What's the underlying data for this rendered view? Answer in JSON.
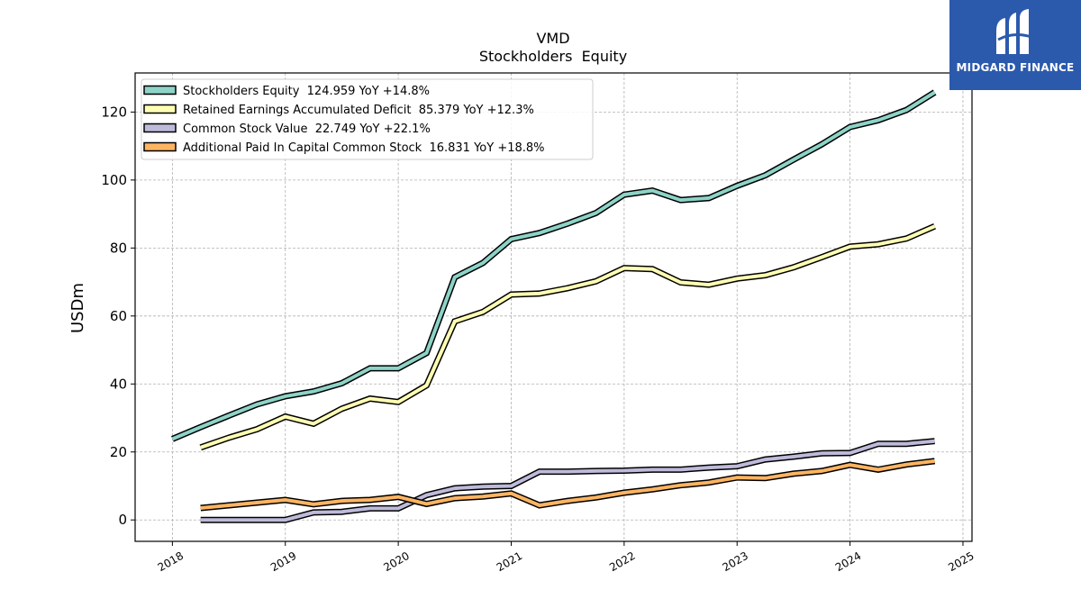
{
  "brand": {
    "name": "MIDGARD FINANCE",
    "bg_color": "#2b5aad"
  },
  "chart_data": {
    "type": "line",
    "title": "VMD",
    "subtitle": "Stockholders  Equity",
    "xlabel": "",
    "ylabel": "USDm",
    "xlim": [
      2017.67,
      2025.08
    ],
    "ylim": [
      -6.3,
      131.5
    ],
    "xticks": [
      2018,
      2019,
      2020,
      2021,
      2022,
      2023,
      2024,
      2025
    ],
    "yticks": [
      0,
      20,
      40,
      60,
      80,
      100,
      120
    ],
    "grid": true,
    "legend_position": "top-left",
    "series": [
      {
        "name": "Stockholders Equity  124.959 YoY +14.8%",
        "color": "#8dd3c7",
        "points": [
          [
            2018.0,
            23.8
          ],
          [
            2018.25,
            27.3
          ],
          [
            2018.5,
            30.7
          ],
          [
            2018.75,
            34.0
          ],
          [
            2019.0,
            36.4
          ],
          [
            2019.25,
            37.8
          ],
          [
            2019.5,
            40.2
          ],
          [
            2019.75,
            44.6
          ],
          [
            2020.0,
            44.6
          ],
          [
            2020.25,
            49.1
          ],
          [
            2020.5,
            71.4
          ],
          [
            2020.75,
            75.6
          ],
          [
            2021.0,
            82.6
          ],
          [
            2021.25,
            84.4
          ],
          [
            2021.5,
            87.2
          ],
          [
            2021.75,
            90.3
          ],
          [
            2022.0,
            95.7
          ],
          [
            2022.25,
            96.9
          ],
          [
            2022.5,
            94.1
          ],
          [
            2022.75,
            94.7
          ],
          [
            2023.0,
            98.3
          ],
          [
            2023.25,
            101.4
          ],
          [
            2023.5,
            106.0
          ],
          [
            2023.75,
            110.5
          ],
          [
            2024.0,
            115.6
          ],
          [
            2024.25,
            117.6
          ],
          [
            2024.5,
            120.6
          ],
          [
            2024.75,
            125.8
          ]
        ]
      },
      {
        "name": "Retained Earnings Accumulated Deficit  85.379 YoY +12.3%",
        "color": "#ffffb3",
        "points": [
          [
            2018.25,
            21.3
          ],
          [
            2018.5,
            24.2
          ],
          [
            2018.75,
            26.7
          ],
          [
            2019.0,
            30.4
          ],
          [
            2019.25,
            28.3
          ],
          [
            2019.5,
            32.7
          ],
          [
            2019.75,
            35.7
          ],
          [
            2020.0,
            34.7
          ],
          [
            2020.25,
            39.6
          ],
          [
            2020.5,
            58.4
          ],
          [
            2020.75,
            61.2
          ],
          [
            2021.0,
            66.3
          ],
          [
            2021.25,
            66.6
          ],
          [
            2021.5,
            68.2
          ],
          [
            2021.75,
            70.2
          ],
          [
            2022.0,
            74.1
          ],
          [
            2022.25,
            73.8
          ],
          [
            2022.5,
            69.9
          ],
          [
            2022.75,
            69.2
          ],
          [
            2023.0,
            71.0
          ],
          [
            2023.25,
            72.0
          ],
          [
            2023.5,
            74.3
          ],
          [
            2023.75,
            77.3
          ],
          [
            2024.0,
            80.4
          ],
          [
            2024.25,
            81.1
          ],
          [
            2024.5,
            82.8
          ],
          [
            2024.75,
            86.4
          ]
        ]
      },
      {
        "name": "Common Stock Value  22.749 YoY +22.1%",
        "color": "#bebada",
        "points": [
          [
            2018.25,
            0.0
          ],
          [
            2018.5,
            0.0
          ],
          [
            2018.75,
            0.0
          ],
          [
            2019.0,
            0.0
          ],
          [
            2019.25,
            2.2
          ],
          [
            2019.5,
            2.4
          ],
          [
            2019.75,
            3.4
          ],
          [
            2020.0,
            3.4
          ],
          [
            2020.25,
            7.3
          ],
          [
            2020.5,
            9.3
          ],
          [
            2020.75,
            9.8
          ],
          [
            2021.0,
            10.0
          ],
          [
            2021.25,
            14.2
          ],
          [
            2021.5,
            14.2
          ],
          [
            2021.75,
            14.4
          ],
          [
            2022.0,
            14.5
          ],
          [
            2022.25,
            14.8
          ],
          [
            2022.5,
            14.8
          ],
          [
            2022.75,
            15.4
          ],
          [
            2023.0,
            15.8
          ],
          [
            2023.25,
            17.8
          ],
          [
            2023.5,
            18.6
          ],
          [
            2023.75,
            19.6
          ],
          [
            2024.0,
            19.7
          ],
          [
            2024.25,
            22.4
          ],
          [
            2024.5,
            22.4
          ],
          [
            2024.75,
            23.2
          ]
        ]
      },
      {
        "name": "Additional Paid In Capital Common Stock  16.831 YoY +18.8%",
        "color": "#fdb462",
        "points": [
          [
            2018.25,
            3.5
          ],
          [
            2018.5,
            4.3
          ],
          [
            2018.75,
            5.1
          ],
          [
            2019.0,
            5.9
          ],
          [
            2019.25,
            4.6
          ],
          [
            2019.5,
            5.6
          ],
          [
            2019.75,
            5.9
          ],
          [
            2020.0,
            6.8
          ],
          [
            2020.25,
            4.7
          ],
          [
            2020.5,
            6.4
          ],
          [
            2020.75,
            6.9
          ],
          [
            2021.0,
            7.8
          ],
          [
            2021.25,
            4.3
          ],
          [
            2021.5,
            5.6
          ],
          [
            2021.75,
            6.6
          ],
          [
            2022.0,
            8.0
          ],
          [
            2022.25,
            9.0
          ],
          [
            2022.5,
            10.2
          ],
          [
            2022.75,
            11.0
          ],
          [
            2023.0,
            12.5
          ],
          [
            2023.25,
            12.3
          ],
          [
            2023.5,
            13.6
          ],
          [
            2023.75,
            14.4
          ],
          [
            2024.0,
            16.2
          ],
          [
            2024.25,
            14.8
          ],
          [
            2024.5,
            16.3
          ],
          [
            2024.75,
            17.3
          ]
        ]
      }
    ]
  }
}
